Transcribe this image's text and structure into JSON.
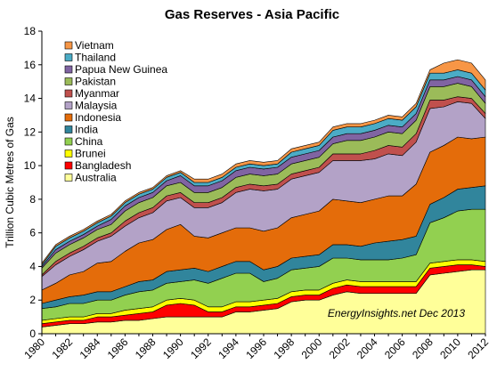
{
  "chart_data": {
    "type": "area",
    "stacked": true,
    "title": "Gas Reserves - Asia Pacific",
    "ylabel": "Trillion Cubic Metres of Gas",
    "xlabel": "",
    "ylim": [
      0,
      18
    ],
    "yticks": [
      0,
      2,
      4,
      6,
      8,
      10,
      12,
      14,
      16,
      18
    ],
    "xlim": [
      1980,
      2012
    ],
    "xticks": [
      1980,
      1982,
      1984,
      1986,
      1988,
      1990,
      1992,
      1994,
      1996,
      1998,
      2000,
      2002,
      2004,
      2006,
      2008,
      2010,
      2012
    ],
    "grid": false,
    "legend_position": "top-left",
    "annotation": "EnergyInsights.net  Dec 2013",
    "x": [
      1980,
      1981,
      1982,
      1983,
      1984,
      1985,
      1986,
      1987,
      1988,
      1989,
      1990,
      1991,
      1992,
      1993,
      1994,
      1995,
      1996,
      1997,
      1998,
      1999,
      2000,
      2001,
      2002,
      2003,
      2004,
      2005,
      2006,
      2007,
      2008,
      2009,
      2010,
      2011,
      2012
    ],
    "series": [
      {
        "name": "Australia",
        "color": "#FFFF99",
        "values": [
          0.4,
          0.5,
          0.6,
          0.6,
          0.7,
          0.7,
          0.8,
          0.8,
          0.9,
          1.0,
          1.0,
          1.0,
          1.0,
          1.0,
          1.3,
          1.3,
          1.4,
          1.5,
          1.9,
          2.0,
          2.0,
          2.3,
          2.5,
          2.4,
          2.4,
          2.4,
          2.4,
          2.4,
          3.5,
          3.6,
          3.7,
          3.8,
          3.8
        ]
      },
      {
        "name": "Bangladesh",
        "color": "#FF0000",
        "values": [
          0.2,
          0.2,
          0.2,
          0.2,
          0.3,
          0.3,
          0.3,
          0.4,
          0.4,
          0.7,
          0.8,
          0.7,
          0.3,
          0.3,
          0.3,
          0.3,
          0.3,
          0.3,
          0.3,
          0.3,
          0.3,
          0.4,
          0.4,
          0.4,
          0.4,
          0.4,
          0.4,
          0.4,
          0.4,
          0.4,
          0.4,
          0.3,
          0.2
        ]
      },
      {
        "name": "Brunei",
        "color": "#FFFF00",
        "values": [
          0.2,
          0.2,
          0.2,
          0.2,
          0.2,
          0.2,
          0.3,
          0.3,
          0.3,
          0.3,
          0.3,
          0.3,
          0.3,
          0.3,
          0.3,
          0.3,
          0.3,
          0.3,
          0.3,
          0.3,
          0.3,
          0.3,
          0.3,
          0.3,
          0.3,
          0.3,
          0.3,
          0.3,
          0.3,
          0.3,
          0.3,
          0.3,
          0.3
        ]
      },
      {
        "name": "China",
        "color": "#92D050",
        "values": [
          0.7,
          0.7,
          0.8,
          0.8,
          0.8,
          0.8,
          0.9,
          1.0,
          1.0,
          1.0,
          1.0,
          1.2,
          1.4,
          1.7,
          1.7,
          1.7,
          1.1,
          1.2,
          1.3,
          1.3,
          1.4,
          1.5,
          1.3,
          1.3,
          1.3,
          1.3,
          1.4,
          1.6,
          2.4,
          2.6,
          2.9,
          3.0,
          3.1
        ]
      },
      {
        "name": "India",
        "color": "#31859C",
        "values": [
          0.3,
          0.4,
          0.4,
          0.5,
          0.5,
          0.5,
          0.5,
          0.6,
          0.6,
          0.7,
          0.7,
          0.7,
          0.7,
          0.7,
          0.7,
          0.7,
          0.7,
          0.7,
          0.7,
          0.7,
          0.7,
          0.8,
          0.8,
          0.8,
          1.0,
          1.1,
          1.1,
          1.1,
          1.1,
          1.2,
          1.3,
          1.3,
          1.4
        ]
      },
      {
        "name": "Indonesia",
        "color": "#E46C0A",
        "values": [
          0.8,
          1.0,
          1.3,
          1.4,
          1.7,
          1.8,
          2.1,
          2.3,
          2.4,
          2.5,
          2.7,
          1.9,
          2.0,
          2.0,
          2.0,
          2.0,
          2.3,
          2.3,
          2.4,
          2.5,
          2.6,
          2.7,
          2.6,
          2.6,
          2.6,
          2.7,
          2.6,
          3.1,
          3.1,
          3.1,
          3.1,
          2.9,
          2.9
        ]
      },
      {
        "name": "Malaysia",
        "color": "#B3A2C7",
        "values": [
          0.8,
          1.1,
          1.1,
          1.3,
          1.3,
          1.5,
          1.5,
          1.5,
          1.6,
          1.7,
          1.6,
          1.7,
          1.8,
          1.8,
          2.1,
          2.3,
          2.4,
          2.3,
          2.3,
          2.3,
          2.3,
          2.3,
          2.4,
          2.5,
          2.4,
          2.5,
          2.4,
          2.5,
          2.6,
          2.3,
          2.1,
          2.1,
          1.1
        ]
      },
      {
        "name": "Myanmar",
        "color": "#C0504D",
        "values": [
          0.1,
          0.2,
          0.2,
          0.2,
          0.2,
          0.2,
          0.3,
          0.3,
          0.3,
          0.3,
          0.3,
          0.3,
          0.3,
          0.3,
          0.3,
          0.3,
          0.3,
          0.3,
          0.3,
          0.3,
          0.3,
          0.4,
          0.4,
          0.4,
          0.5,
          0.5,
          0.5,
          0.5,
          0.5,
          0.4,
          0.3,
          0.3,
          0.3
        ]
      },
      {
        "name": "Pakistan",
        "color": "#9BBB59",
        "values": [
          0.4,
          0.5,
          0.5,
          0.5,
          0.5,
          0.5,
          0.6,
          0.6,
          0.6,
          0.6,
          0.6,
          0.6,
          0.6,
          0.6,
          0.6,
          0.6,
          0.6,
          0.6,
          0.6,
          0.6,
          0.6,
          0.6,
          0.8,
          0.8,
          0.8,
          0.8,
          0.8,
          0.8,
          0.8,
          0.8,
          0.8,
          0.7,
          0.6
        ]
      },
      {
        "name": "Papua New Guinea",
        "color": "#8064A2",
        "values": [
          0.1,
          0.2,
          0.2,
          0.2,
          0.2,
          0.3,
          0.3,
          0.3,
          0.3,
          0.3,
          0.4,
          0.4,
          0.4,
          0.4,
          0.4,
          0.4,
          0.4,
          0.4,
          0.4,
          0.4,
          0.4,
          0.4,
          0.4,
          0.4,
          0.4,
          0.4,
          0.4,
          0.4,
          0.4,
          0.4,
          0.4,
          0.4,
          0.4
        ]
      },
      {
        "name": "Thailand",
        "color": "#4BACC6",
        "values": [
          0.1,
          0.2,
          0.2,
          0.2,
          0.2,
          0.2,
          0.2,
          0.2,
          0.2,
          0.2,
          0.2,
          0.2,
          0.2,
          0.2,
          0.2,
          0.2,
          0.2,
          0.2,
          0.3,
          0.3,
          0.3,
          0.4,
          0.4,
          0.4,
          0.4,
          0.4,
          0.4,
          0.4,
          0.4,
          0.4,
          0.4,
          0.4,
          0.4
        ]
      },
      {
        "name": "Vietnam",
        "color": "#F79646",
        "values": [
          0.1,
          0.1,
          0.1,
          0.1,
          0.1,
          0.1,
          0.1,
          0.1,
          0.1,
          0.1,
          0.1,
          0.2,
          0.2,
          0.2,
          0.2,
          0.2,
          0.2,
          0.2,
          0.2,
          0.2,
          0.2,
          0.2,
          0.2,
          0.2,
          0.2,
          0.2,
          0.2,
          0.2,
          0.2,
          0.6,
          0.6,
          0.6,
          0.6
        ]
      }
    ]
  }
}
